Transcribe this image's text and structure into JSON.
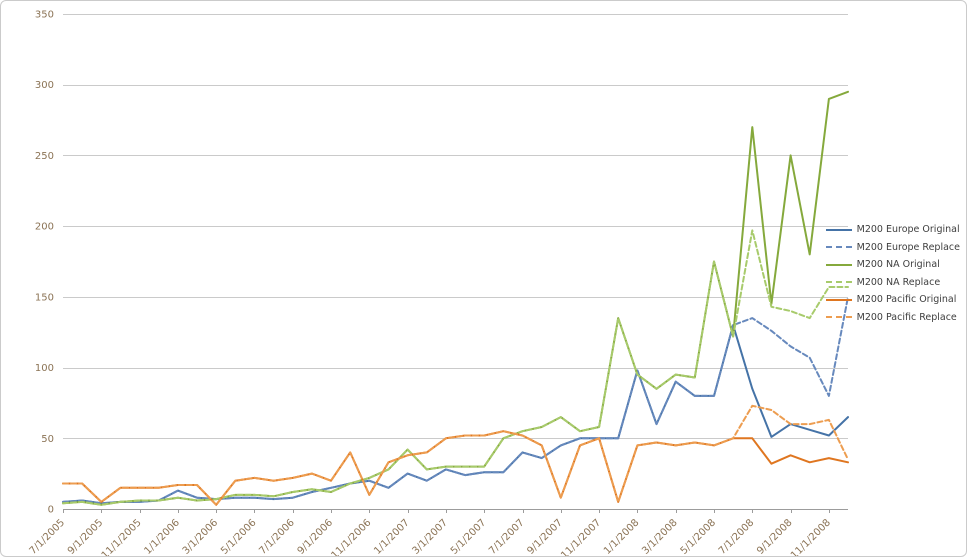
{
  "chart_data": {
    "type": "line",
    "title": "",
    "xlabel": "",
    "ylabel": "",
    "ylim": [
      0,
      350
    ],
    "ytick_step": 50,
    "grid": "horizontal",
    "legend_position": "right",
    "colors": {
      "gridline": "#CACACA",
      "axis_line": "#9C9C9C",
      "axis_text": "#8B7355",
      "legend_text": "#3E3E3E",
      "background": "#FFFFFF",
      "border": "#CBCBCB"
    },
    "x": [
      "7/1/2005",
      "8/1/2005",
      "9/1/2005",
      "10/1/2005",
      "11/1/2005",
      "12/1/2005",
      "1/1/2006",
      "2/1/2006",
      "3/1/2006",
      "4/1/2006",
      "5/1/2006",
      "6/1/2006",
      "7/1/2006",
      "8/1/2006",
      "9/1/2006",
      "10/1/2006",
      "11/1/2006",
      "12/1/2006",
      "1/1/2007",
      "2/1/2007",
      "3/1/2007",
      "4/1/2007",
      "5/1/2007",
      "6/1/2007",
      "7/1/2007",
      "8/1/2007",
      "9/1/2007",
      "10/1/2007",
      "11/1/2007",
      "12/1/2007",
      "1/1/2008",
      "2/1/2008",
      "3/1/2008",
      "4/1/2008",
      "5/1/2008",
      "6/1/2008",
      "7/1/2008",
      "8/1/2008",
      "9/1/2008",
      "10/1/2008",
      "11/1/2008",
      "12/1/2008"
    ],
    "x_tick_labels": [
      "7/1/2005",
      "9/1/2005",
      "11/1/2005",
      "1/1/2006",
      "3/1/2006",
      "5/1/2006",
      "7/1/2006",
      "9/1/2006",
      "11/1/2006",
      "1/1/2007",
      "3/1/2007",
      "5/1/2007",
      "7/1/2007",
      "9/1/2007",
      "11/1/2007",
      "1/1/2008",
      "3/1/2008",
      "5/1/2008",
      "7/1/2008",
      "9/1/2008",
      "11/1/2008"
    ],
    "y_tick_labels": [
      "0",
      "50",
      "100",
      "150",
      "200",
      "250",
      "300",
      "350"
    ],
    "series": [
      {
        "name": "M200 Europe Original",
        "color": "#4573A7",
        "dash": false,
        "values": [
          5,
          6,
          4,
          5,
          5,
          6,
          13,
          8,
          7,
          8,
          8,
          7,
          8,
          12,
          15,
          18,
          20,
          15,
          25,
          20,
          28,
          24,
          26,
          26,
          40,
          36,
          45,
          50,
          50,
          50,
          98,
          60,
          90,
          80,
          80,
          130,
          85,
          51,
          60,
          56,
          52,
          65
        ]
      },
      {
        "name": "M200 Europe Replace",
        "color": "#6789BD",
        "dash": true,
        "values": [
          5,
          6,
          4,
          5,
          5,
          6,
          13,
          8,
          7,
          8,
          8,
          7,
          8,
          12,
          15,
          18,
          20,
          15,
          25,
          20,
          28,
          24,
          26,
          26,
          40,
          36,
          45,
          50,
          50,
          50,
          98,
          60,
          90,
          80,
          80,
          130,
          135,
          126,
          115,
          107,
          80,
          150
        ]
      },
      {
        "name": "M200 NA Original",
        "color": "#85A93C",
        "dash": false,
        "values": [
          4,
          5,
          3,
          5,
          6,
          6,
          8,
          6,
          7,
          10,
          10,
          9,
          12,
          14,
          12,
          18,
          22,
          28,
          42,
          28,
          30,
          30,
          30,
          50,
          55,
          58,
          65,
          55,
          58,
          135,
          95,
          85,
          95,
          93,
          175,
          122,
          270,
          145,
          250,
          180,
          290,
          295
        ]
      },
      {
        "name": "M200 NA Replace",
        "color": "#A8CB6C",
        "dash": true,
        "values": [
          4,
          5,
          3,
          5,
          6,
          6,
          8,
          6,
          7,
          10,
          10,
          9,
          12,
          14,
          12,
          18,
          22,
          28,
          42,
          28,
          30,
          30,
          30,
          50,
          55,
          58,
          65,
          55,
          58,
          135,
          95,
          85,
          95,
          93,
          175,
          122,
          197,
          143,
          140,
          135,
          157,
          157
        ]
      },
      {
        "name": "M200 Pacific Original",
        "color": "#DF7620",
        "dash": false,
        "values": [
          18,
          18,
          5,
          15,
          15,
          15,
          17,
          17,
          3,
          20,
          22,
          20,
          22,
          25,
          20,
          40,
          10,
          33,
          38,
          40,
          50,
          52,
          52,
          55,
          52,
          45,
          8,
          45,
          50,
          5,
          45,
          47,
          45,
          47,
          45,
          50,
          50,
          32,
          38,
          33,
          36,
          33
        ]
      },
      {
        "name": "M200 Pacific Replace",
        "color": "#ED9D50",
        "dash": true,
        "values": [
          18,
          18,
          5,
          15,
          15,
          15,
          17,
          17,
          3,
          20,
          22,
          20,
          22,
          25,
          20,
          40,
          10,
          33,
          38,
          40,
          50,
          52,
          52,
          55,
          52,
          45,
          8,
          45,
          50,
          5,
          45,
          47,
          45,
          47,
          45,
          50,
          73,
          70,
          60,
          60,
          63,
          35
        ]
      }
    ]
  }
}
